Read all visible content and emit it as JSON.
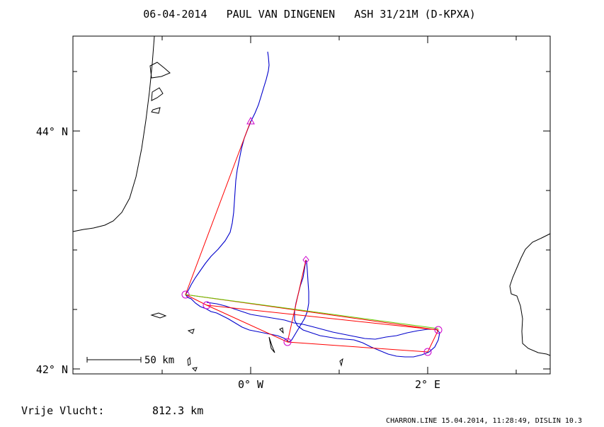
{
  "title": "06-04-2014   PAUL VAN DINGENEN   ASH 31/21M (D-KPXA)",
  "axes": {
    "y_ticks": [
      {
        "label": "44° N",
        "lat": 44.0
      },
      {
        "label": "42° N",
        "lat": 42.0
      }
    ],
    "x_ticks": [
      {
        "label": "0° W",
        "lon": 0.0
      },
      {
        "label": "2° E",
        "lon": 2.0
      }
    ]
  },
  "scale_bar": {
    "label": "50 km"
  },
  "footer": {
    "distance_label": "Vrije Vlucht:",
    "distance_value": "812.3 km",
    "software": "CHARRON.LINE 15.04.2014, 11:28:49, DISLIN 10.3"
  },
  "colors": {
    "track": "#0000cc",
    "task": "#ff0000",
    "optimized": "#66cc00",
    "waypoint": "#cc00cc",
    "coast": "#000000"
  },
  "waypoints": [
    {
      "id": "start",
      "lon": 0.0,
      "lat": 44.08,
      "symbol": "triangle"
    },
    {
      "id": "tp1",
      "lon": -0.72,
      "lat": 42.62,
      "symbol": "circle"
    },
    {
      "id": "tp2",
      "lon": -0.48,
      "lat": 42.54,
      "symbol": "circle"
    },
    {
      "id": "tp3",
      "lon": 0.43,
      "lat": 42.23,
      "symbol": "circle"
    },
    {
      "id": "tp4",
      "lon": 2.01,
      "lat": 42.15,
      "symbol": "circle"
    },
    {
      "id": "tp5",
      "lon": 2.13,
      "lat": 42.33,
      "symbol": "circle"
    },
    {
      "id": "finish",
      "lon": 0.63,
      "lat": 42.92,
      "symbol": "diamond"
    }
  ]
}
